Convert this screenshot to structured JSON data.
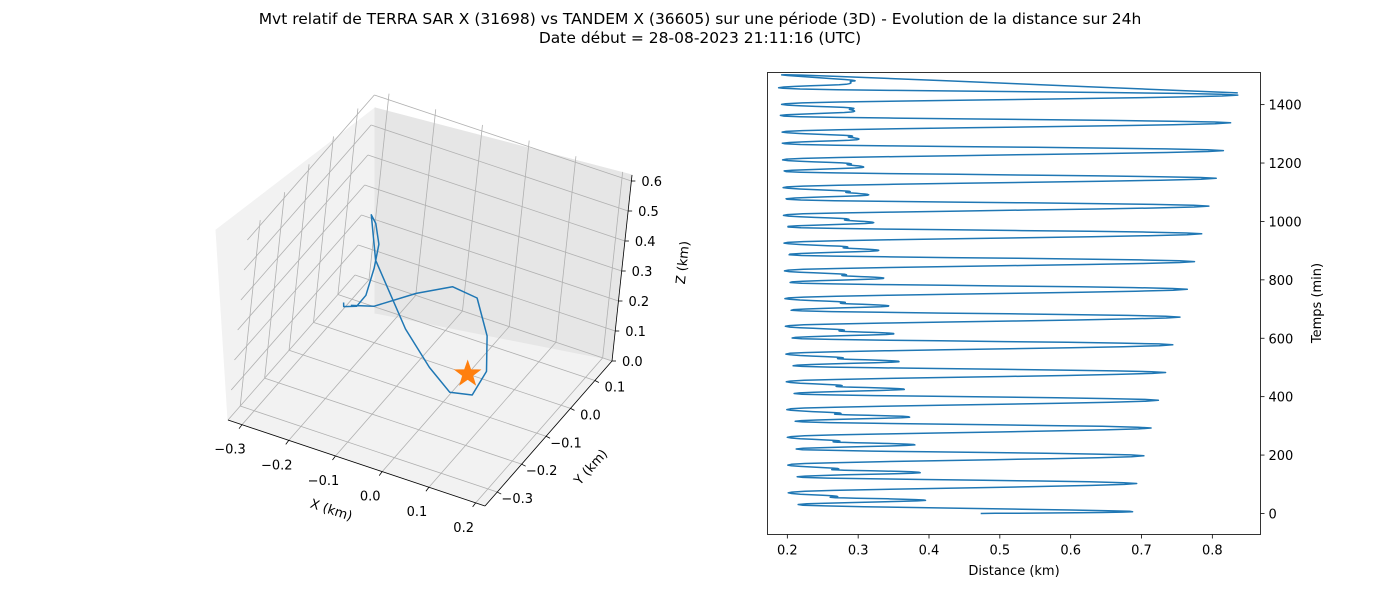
{
  "page": {
    "title_line1": "Mvt relatif de TERRA SAR X (31698) vs TANDEM X (36605) sur une période (3D) - Evolution de la distance sur 24h",
    "title_line2": "Date début = 28-08-2023 21:11:16 (UTC)"
  },
  "chart_data": [
    {
      "type": "line3d",
      "xlabel": "X (km)",
      "ylabel": "Y (km)",
      "zlabel": "Z (km)",
      "x_ticks": [
        "−0.3",
        "−0.2",
        "−0.1",
        "0.0",
        "0.1",
        "0.2"
      ],
      "y_ticks": [
        "−0.3",
        "−0.2",
        "−0.1",
        "0.0",
        "0.1"
      ],
      "z_ticks": [
        "0.0",
        "0.1",
        "0.2",
        "0.3",
        "0.4",
        "0.5",
        "0.6"
      ],
      "xlim": [
        -0.33,
        0.22
      ],
      "ylim": [
        -0.35,
        0.17
      ],
      "zlim": [
        0.0,
        0.62
      ],
      "line_color": "#1f77b4",
      "marker_color": "#ff7f0e",
      "marker": "star",
      "marker_point": {
        "x": 0.0,
        "y": 0.0,
        "z": 0.0
      },
      "series": [
        {
          "points": [
            {
              "x": -0.29,
              "y": 0.04,
              "z": 0.05
            },
            {
              "x": -0.28,
              "y": 0.02,
              "z": 0.06
            },
            {
              "x": -0.24,
              "y": -0.01,
              "z": 0.11
            },
            {
              "x": -0.21,
              "y": -0.04,
              "z": 0.19
            },
            {
              "x": -0.19,
              "y": -0.06,
              "z": 0.31
            },
            {
              "x": -0.19,
              "y": -0.05,
              "z": 0.38
            },
            {
              "x": -0.21,
              "y": -0.03,
              "z": 0.42
            },
            {
              "x": -0.23,
              "y": -0.01,
              "z": 0.42
            },
            {
              "x": -0.18,
              "y": -0.08,
              "z": 0.36
            },
            {
              "x": -0.05,
              "y": -0.2,
              "z": 0.31
            },
            {
              "x": 0.03,
              "y": -0.25,
              "z": 0.27
            },
            {
              "x": 0.1,
              "y": -0.3,
              "z": 0.27
            },
            {
              "x": 0.16,
              "y": -0.33,
              "z": 0.32
            },
            {
              "x": 0.18,
              "y": -0.32,
              "z": 0.4
            },
            {
              "x": 0.16,
              "y": -0.29,
              "z": 0.48
            },
            {
              "x": 0.1,
              "y": -0.22,
              "z": 0.51
            },
            {
              "x": 0.02,
              "y": -0.16,
              "z": 0.45
            },
            {
              "x": -0.08,
              "y": -0.1,
              "z": 0.32
            },
            {
              "x": -0.2,
              "y": -0.02,
              "z": 0.14
            },
            {
              "x": -0.27,
              "y": 0.03,
              "z": 0.06
            }
          ]
        }
      ]
    },
    {
      "type": "line",
      "xlabel": "Distance (km)",
      "ylabel": "Temps (min)",
      "xlim": [
        0.172,
        0.868
      ],
      "ylim": [
        -72,
        1510
      ],
      "x_ticks": [
        "0.2",
        "0.3",
        "0.4",
        "0.5",
        "0.6",
        "0.7",
        "0.8"
      ],
      "y_ticks": [
        "0",
        "200",
        "400",
        "600",
        "800",
        "1000",
        "1200",
        "1400"
      ],
      "line_color": "#1f77b4",
      "series": [
        {
          "orbit_period_min": 95,
          "t_start": 0,
          "t_end": 1440,
          "d_start": 0.473,
          "d_min_start": 0.222,
          "d_min_end": 0.218,
          "d_max_start": 0.683,
          "d_max_end": 0.836,
          "d_sub_max_start": 0.395,
          "d_sub_max_end": 0.283,
          "d_sub_min_start": 0.268,
          "d_sub_min_end": 0.289
        }
      ]
    }
  ]
}
